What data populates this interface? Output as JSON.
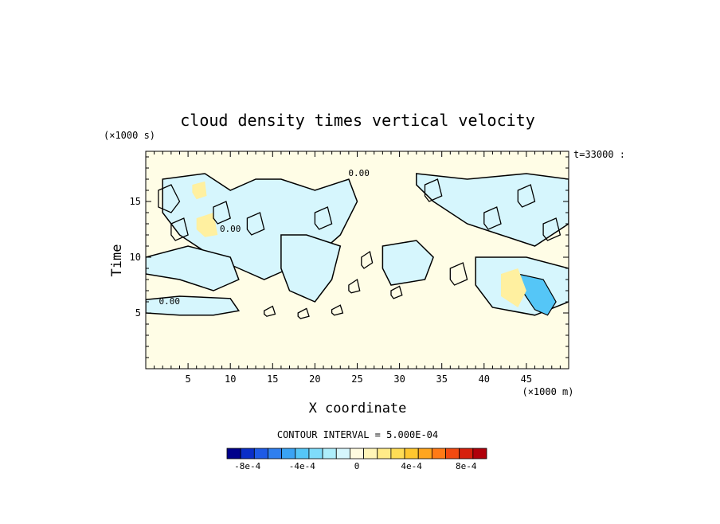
{
  "chart_data": {
    "type": "heatmap",
    "title": "cloud density times vertical velocity",
    "xlabel": "X coordinate",
    "ylabel": "Time",
    "x_unit": "(×1000 m)",
    "y_unit": "(×1000 s)",
    "time_stamp": "t=33000 :",
    "xlim": [
      0,
      50
    ],
    "ylim": [
      0,
      19.5
    ],
    "x_ticks": [
      5,
      10,
      15,
      20,
      25,
      30,
      35,
      40,
      45
    ],
    "x_tick_labels": [
      "5",
      "10",
      "15",
      "20",
      "25",
      "30",
      "35",
      "40",
      "45"
    ],
    "y_ticks": [
      5,
      10,
      15
    ],
    "y_tick_labels": [
      "5",
      "10",
      "15"
    ],
    "contour_interval_text": "CONTOUR INTERVAL = 5.000E-04",
    "contour_labels": [
      {
        "text": "0.00",
        "x": 25.2,
        "y": 17.3
      },
      {
        "text": "0.00",
        "x": 10.0,
        "y": 12.3
      },
      {
        "text": "0.00",
        "x": 2.8,
        "y": 5.8
      }
    ],
    "colorbar": {
      "colors": [
        "#00008b",
        "#0a2ec8",
        "#1e5ae6",
        "#2f7fef",
        "#3aa3f4",
        "#55c6f7",
        "#7fdcfa",
        "#aeeefc",
        "#d6f6fd",
        "#fffbe0",
        "#fff5b8",
        "#ffeb88",
        "#ffdd55",
        "#ffc72e",
        "#ffa51e",
        "#ff7a16",
        "#f24a10",
        "#d6200c",
        "#b0000a"
      ],
      "tick_labels": [
        "-8e-4",
        "-4e-4",
        "0",
        "4e-4",
        "8e-4"
      ],
      "tick_values": [
        -0.0008,
        -0.0004,
        0,
        0.0004,
        0.0008
      ]
    },
    "background_color": "#fffde6",
    "contour_line_color": "#000000",
    "negative_regions": [
      {
        "x": [
          2,
          7,
          10,
          13,
          16,
          20,
          24,
          25,
          23,
          20,
          17,
          14,
          11,
          8,
          4,
          2
        ],
        "y": [
          17,
          17.5,
          16,
          17,
          17,
          16,
          17,
          15,
          12,
          10,
          9,
          8,
          9,
          10,
          12,
          14
        ]
      },
      {
        "x": [
          16,
          19,
          23,
          22,
          20,
          17,
          16
        ],
        "y": [
          12,
          12,
          11,
          8,
          6,
          7,
          9
        ]
      },
      {
        "x": [
          0,
          5,
          10,
          11,
          8,
          4,
          0
        ],
        "y": [
          10,
          11,
          10,
          8,
          7,
          8,
          8.5
        ]
      },
      {
        "x": [
          0,
          4,
          10,
          11,
          8,
          4,
          0
        ],
        "y": [
          6.2,
          6.5,
          6.3,
          5.2,
          4.8,
          4.8,
          5.0
        ]
      },
      {
        "x": [
          32,
          38,
          45,
          50,
          50,
          46,
          42,
          38,
          34,
          32
        ],
        "y": [
          17.5,
          17,
          17.5,
          17,
          13,
          11,
          12,
          13,
          15,
          16.5
        ]
      },
      {
        "x": [
          39,
          45,
          50,
          50,
          46,
          41,
          39
        ],
        "y": [
          10,
          10,
          9,
          6,
          4.8,
          5.5,
          7.5
        ]
      },
      {
        "x": [
          28,
          32,
          34,
          33,
          29,
          28
        ],
        "y": [
          11,
          11.5,
          10,
          8,
          7.5,
          9
        ]
      }
    ],
    "strong_negative_regions": [
      {
        "x": [
          44,
          47,
          48.5,
          47.5,
          46,
          44.5,
          44
        ],
        "y": [
          8.5,
          8,
          6,
          4.8,
          5.3,
          7,
          8
        ]
      }
    ],
    "positive_regions": [
      {
        "x": [
          42,
          44,
          45,
          44,
          42
        ],
        "y": [
          8.5,
          9,
          7,
          5.5,
          6.5
        ]
      },
      {
        "x": [
          6,
          8,
          8.5,
          7,
          6
        ],
        "y": [
          13.5,
          14,
          12,
          11.8,
          12.5
        ]
      },
      {
        "x": [
          5.5,
          7,
          7.2,
          6,
          5.5
        ],
        "y": [
          16.5,
          16.8,
          15.5,
          15.2,
          15.8
        ]
      }
    ],
    "contour_loops": [
      {
        "x": [
          1.5,
          3,
          4,
          3,
          1.5
        ],
        "y": [
          16,
          16.5,
          15,
          14,
          14.5
        ]
      },
      {
        "x": [
          3,
          4.5,
          5,
          3.5,
          3
        ],
        "y": [
          13,
          13.5,
          12,
          11.5,
          12
        ]
      },
      {
        "x": [
          8,
          9.5,
          10,
          8.5,
          8
        ],
        "y": [
          14.5,
          15,
          13.5,
          13,
          13.5
        ]
      },
      {
        "x": [
          12,
          13.5,
          14,
          12.5,
          12
        ],
        "y": [
          13.5,
          14,
          12.5,
          12,
          12.5
        ]
      },
      {
        "x": [
          20,
          21.5,
          22,
          20.5,
          20
        ],
        "y": [
          14,
          14.5,
          13,
          12.5,
          13
        ]
      },
      {
        "x": [
          25.5,
          26.5,
          26.8,
          25.8,
          25.5
        ],
        "y": [
          10,
          10.5,
          9.5,
          9,
          9.3
        ]
      },
      {
        "x": [
          36,
          37.5,
          38,
          36.5,
          36
        ],
        "y": [
          9,
          9.5,
          8,
          7.5,
          8
        ]
      },
      {
        "x": [
          40,
          41.5,
          42,
          40.5,
          40
        ],
        "y": [
          14,
          14.5,
          13,
          12.5,
          13
        ]
      },
      {
        "x": [
          33,
          34.5,
          35,
          33.5,
          33
        ],
        "y": [
          16.5,
          17,
          15.5,
          15,
          15.5
        ]
      },
      {
        "x": [
          44,
          45.5,
          46,
          44.5,
          44
        ],
        "y": [
          16,
          16.5,
          15,
          14.5,
          15
        ]
      },
      {
        "x": [
          47,
          48.5,
          49,
          47.5,
          47
        ],
        "y": [
          13,
          13.5,
          12,
          11.5,
          12
        ]
      },
      {
        "x": [
          24,
          25,
          25.3,
          24.3,
          24
        ],
        "y": [
          7.5,
          8,
          7,
          6.8,
          7
        ]
      },
      {
        "x": [
          29,
          30,
          30.3,
          29.3,
          29
        ],
        "y": [
          7,
          7.4,
          6.6,
          6.3,
          6.6
        ]
      },
      {
        "x": [
          14,
          15,
          15.3,
          14.3,
          14
        ],
        "y": [
          5.2,
          5.6,
          4.9,
          4.7,
          4.9
        ]
      },
      {
        "x": [
          18,
          19,
          19.3,
          18.3,
          18
        ],
        "y": [
          5,
          5.4,
          4.7,
          4.5,
          4.7
        ]
      },
      {
        "x": [
          22,
          23,
          23.3,
          22.3,
          22
        ],
        "y": [
          5.3,
          5.7,
          5,
          4.8,
          5
        ]
      }
    ]
  }
}
